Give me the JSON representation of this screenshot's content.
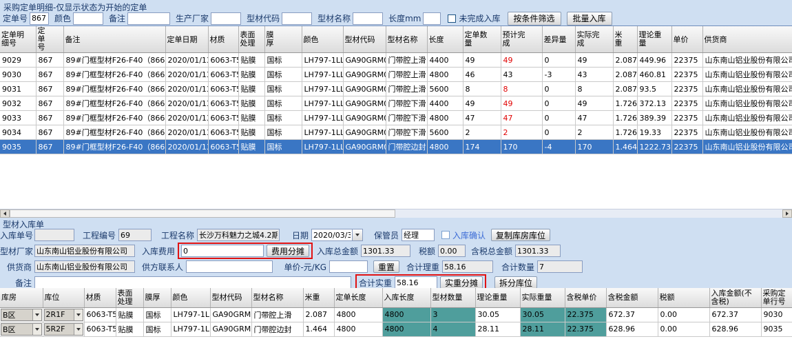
{
  "colors": {
    "selected_row_bg": "#3a76c4",
    "selected_row_text": "#ffffff",
    "alert_red": "#e00000",
    "teal_cell_bg": "#4f9e9c",
    "annotation_red": "#e11212",
    "label_navy": "#1b3a6b",
    "confirm_blue": "#3b6bd6",
    "window_bg": "#cfdff2"
  },
  "top_section": {
    "title": "采购定单明细-仅显示状态为开始的定单",
    "filters": [
      {
        "label": "定单号",
        "value": "867"
      },
      {
        "label": "颜色",
        "value": ""
      },
      {
        "label": "备注",
        "value": ""
      },
      {
        "label": "生产厂家",
        "value": ""
      },
      {
        "label": "型材代码",
        "value": ""
      },
      {
        "label": "型材名称",
        "value": ""
      },
      {
        "label": "长度mm",
        "value": ""
      }
    ],
    "unfinished_checkbox_label": "未完成入库",
    "filter_button": "按条件筛选",
    "batch_button": "批量入库"
  },
  "order_table": {
    "headers": [
      "定单明细号",
      "定单号",
      "备注",
      "定单日期",
      "材质",
      "表面处理",
      "膜厚",
      "颜色",
      "型材代码",
      "型材名称",
      "长度",
      "定单数量",
      "预计完成",
      "差异量",
      "实际完成",
      "米重",
      "理论重量",
      "单价",
      "供货商"
    ],
    "selected_row": 6,
    "rows": [
      {
        "cells": [
          "9029",
          "867",
          "89#门框型材F26-F40（866+867）",
          "2020/01/13",
          "6063-T5",
          "贴膜",
          "国标",
          "LH797-1LL0",
          "GA90GRM03",
          "门带腔上滑",
          "4400",
          "49",
          "49",
          "0",
          "49",
          "2.087",
          "449.96",
          "22375",
          "山东南山铝业股份有限公司"
        ],
        "expected_red": true
      },
      {
        "cells": [
          "9030",
          "867",
          "89#门框型材F26-F40（866+867）",
          "2020/01/13",
          "6063-T5",
          "贴膜",
          "国标",
          "LH797-1LL0",
          "GA90GRM03",
          "门带腔上滑",
          "4800",
          "46",
          "43",
          "-3",
          "43",
          "2.087",
          "460.81",
          "22375",
          "山东南山铝业股份有限公司"
        ],
        "expected_red": false
      },
      {
        "cells": [
          "9031",
          "867",
          "89#门框型材F26-F40（866+867）",
          "2020/01/13",
          "6063-T5",
          "贴膜",
          "国标",
          "LH797-1LL0",
          "GA90GRM03",
          "门带腔上滑",
          "5600",
          "8",
          "8",
          "0",
          "8",
          "2.087",
          "93.5",
          "22375",
          "山东南山铝业股份有限公司"
        ],
        "expected_red": true
      },
      {
        "cells": [
          "9032",
          "867",
          "89#门框型材F26-F40（866+867）",
          "2020/01/13",
          "6063-T5",
          "贴膜",
          "国标",
          "LH797-1LL0",
          "GA90GRM04",
          "门带腔下滑",
          "4400",
          "49",
          "49",
          "0",
          "49",
          "1.726",
          "372.13",
          "22375",
          "山东南山铝业股份有限公司"
        ],
        "expected_red": true
      },
      {
        "cells": [
          "9033",
          "867",
          "89#门框型材F26-F40（866+867）",
          "2020/01/13",
          "6063-T5",
          "贴膜",
          "国标",
          "LH797-1LL0",
          "GA90GRM04",
          "门带腔下滑",
          "4800",
          "47",
          "47",
          "0",
          "47",
          "1.726",
          "389.39",
          "22375",
          "山东南山铝业股份有限公司"
        ],
        "expected_red": true
      },
      {
        "cells": [
          "9034",
          "867",
          "89#门框型材F26-F40（866+867）",
          "2020/01/13",
          "6063-T5",
          "贴膜",
          "国标",
          "LH797-1LL0",
          "GA90GRM04",
          "门带腔下滑",
          "5600",
          "2",
          "2",
          "0",
          "2",
          "1.726",
          "19.33",
          "22375",
          "山东南山铝业股份有限公司"
        ],
        "expected_red": true
      },
      {
        "cells": [
          "9035",
          "867",
          "89#门框型材F26-F40（866+867）",
          "2020/01/13",
          "6063-T5",
          "贴膜",
          "国标",
          "LH797-1LL0",
          "GA90GRM05",
          "门带腔边封",
          "4800",
          "174",
          "170",
          "-4",
          "170",
          "1.464",
          "1222.73",
          "22375",
          "山东南山铝业股份有限公司"
        ],
        "expected_red": true
      }
    ]
  },
  "inbound_form": {
    "section_title": "型材入库单",
    "receipt_no_label": "入库单号",
    "receipt_no": "",
    "project_no_label": "工程编号",
    "project_no": "69",
    "project_name_label": "工程名称",
    "project_name": "长沙万科魅力之城4.2期",
    "date_label": "日期",
    "date": "2020/03/31",
    "keeper_label": "保管员",
    "keeper": "经理",
    "confirm_label": "入库确认",
    "copy_location_btn": "复制库房库位",
    "factory_label": "型材厂家",
    "factory": "山东南山铝业股份有限公司",
    "fee_label": "入库费用",
    "fee": "0",
    "fee_share_btn": "费用分摊",
    "total_amount_label": "入库总金额",
    "total_amount": "1301.33",
    "tax_label": "税额",
    "tax": "0.00",
    "tax_total_label": "含税总金额",
    "tax_total": "1301.33",
    "supplier_label": "供货商",
    "supplier": "山东南山铝业股份有限公司",
    "contact_label": "供方联系人",
    "contact": "",
    "unit_price_label": "单价-元/KG",
    "unit_price": "",
    "reset_btn": "重置",
    "theory_weight_label": "合计理重",
    "theory_weight": "58.16",
    "qty_label": "合计数量",
    "qty": "7",
    "remark_label": "备注",
    "remark": "",
    "actual_weight_label": "合计实重",
    "actual_weight": "58.16",
    "actual_share_btn": "实重分摊",
    "split_btn": "拆分库位"
  },
  "stock_table": {
    "headers": [
      "库房",
      "库位",
      "材质",
      "表面处理",
      "膜厚",
      "颜色",
      "型材代码",
      "型材名称",
      "米重",
      "定单长度",
      "入库长度",
      "型材数量",
      "理论重量",
      "实际重量",
      "含税单价",
      "含税金额",
      "税额",
      "入库金额(不含税)",
      "采购定单行号"
    ],
    "teal_columns": [
      10,
      11,
      13,
      14
    ],
    "rows": [
      {
        "cells": [
          "B区",
          "2R1F",
          "6063-T5",
          "贴膜",
          "国标",
          "LH797-1LL0",
          "GA90GRM03",
          "门带腔上滑",
          "2.087",
          "4800",
          "4800",
          "3",
          "30.05",
          "30.05",
          "22.375",
          "672.37",
          "0.00",
          "672.37",
          "9030"
        ]
      },
      {
        "cells": [
          "B区",
          "5R2F",
          "6063-T5",
          "贴膜",
          "国标",
          "LH797-1LL0",
          "GA90GRM05",
          "门带腔边封",
          "1.464",
          "4800",
          "4800",
          "4",
          "28.11",
          "28.11",
          "22.375",
          "628.96",
          "0.00",
          "628.96",
          "9035"
        ]
      }
    ]
  }
}
